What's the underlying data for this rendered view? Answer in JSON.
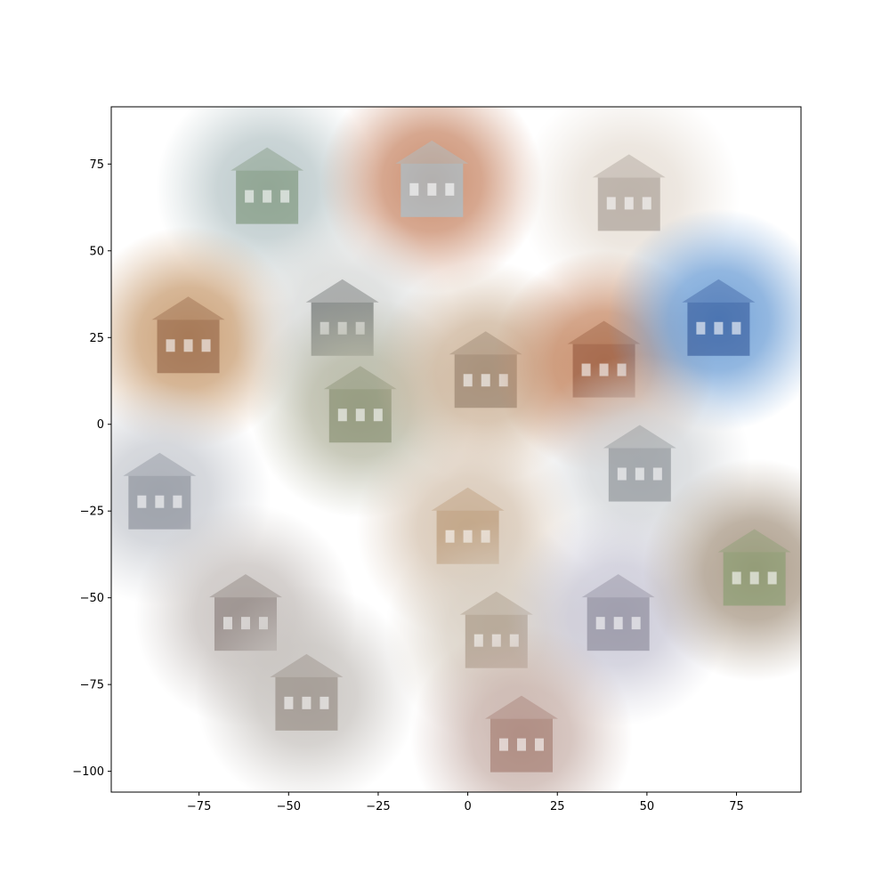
{
  "chart_data": {
    "type": "scatter",
    "title": "",
    "xlabel": "",
    "ylabel": "",
    "xlim": [
      -99.5,
      93
    ],
    "ylim": [
      -106,
      91.5
    ],
    "x_ticks": [
      -75,
      -50,
      -25,
      0,
      25,
      50,
      75
    ],
    "y_ticks": [
      75,
      50,
      25,
      0,
      -25,
      -50,
      -75,
      -100
    ],
    "x_tick_labels": [
      "−75",
      "−50",
      "−25",
      "0",
      "25",
      "50",
      "75"
    ],
    "y_tick_labels": [
      "75",
      "50",
      "25",
      "0",
      "−25",
      "−50",
      "−75",
      "−100"
    ],
    "grid": false,
    "legend": "none",
    "points": [
      {
        "x": -56,
        "y": 68,
        "fill": "#b9c7c9",
        "accent": "#6f8a6a",
        "icon": "glass-pavilion-image"
      },
      {
        "x": -10,
        "y": 70,
        "fill": "#c98a6a",
        "accent": "#9ecbe0",
        "icon": "brick-tower-image"
      },
      {
        "x": 45,
        "y": 66,
        "fill": "#e7dfd6",
        "accent": "#9a8f86",
        "icon": "atrium-interior-image"
      },
      {
        "x": -78,
        "y": 25,
        "fill": "#c99e73",
        "accent": "#8a5a3c",
        "icon": "wood-ceiling-interior-image"
      },
      {
        "x": -35,
        "y": 30,
        "fill": "#d7d9d8",
        "accent": "#4f5452",
        "icon": "white-house-image"
      },
      {
        "x": -30,
        "y": 5,
        "fill": "#b7b8a4",
        "accent": "#7b8565",
        "icon": "courtyard-garden-image"
      },
      {
        "x": 5,
        "y": 15,
        "fill": "#cdb49a",
        "accent": "#8a7560",
        "icon": "stone-facade-image"
      },
      {
        "x": 38,
        "y": 18,
        "fill": "#c78a66",
        "accent": "#8c4f35",
        "icon": "brick-highrise-image"
      },
      {
        "x": 70,
        "y": 30,
        "fill": "#6e9fd6",
        "accent": "#2a4e92",
        "icon": "blue-tile-interior-image"
      },
      {
        "x": -86,
        "y": -20,
        "fill": "#c9ccd2",
        "accent": "#7b818c",
        "icon": "shelf-facade-image"
      },
      {
        "x": 48,
        "y": -12,
        "fill": "#d3d6d9",
        "accent": "#7d8388",
        "icon": "corridor-image"
      },
      {
        "x": 0,
        "y": -30,
        "fill": "#d5c3b0",
        "accent": "#b58f6a",
        "icon": "timber-cabin-image"
      },
      {
        "x": -62,
        "y": -55,
        "fill": "#c7c1be",
        "accent": "#7b706b",
        "icon": "brick-building-image"
      },
      {
        "x": -45,
        "y": -78,
        "fill": "#c8c4c0",
        "accent": "#8a7f76",
        "icon": "glass-roof-hall-image"
      },
      {
        "x": 8,
        "y": -60,
        "fill": "#d8cfc3",
        "accent": "#9c8a76",
        "icon": "scaffold-building-image"
      },
      {
        "x": 42,
        "y": -55,
        "fill": "#c9c8d6",
        "accent": "#7d7b8c",
        "icon": "industrial-yard-image"
      },
      {
        "x": 80,
        "y": -42,
        "fill": "#a99986",
        "accent": "#7f9b68",
        "icon": "arch-bridge-image"
      },
      {
        "x": 15,
        "y": -90,
        "fill": "#c9b3ac",
        "accent": "#9a6f63",
        "icon": "factory-chimney-image"
      }
    ]
  }
}
